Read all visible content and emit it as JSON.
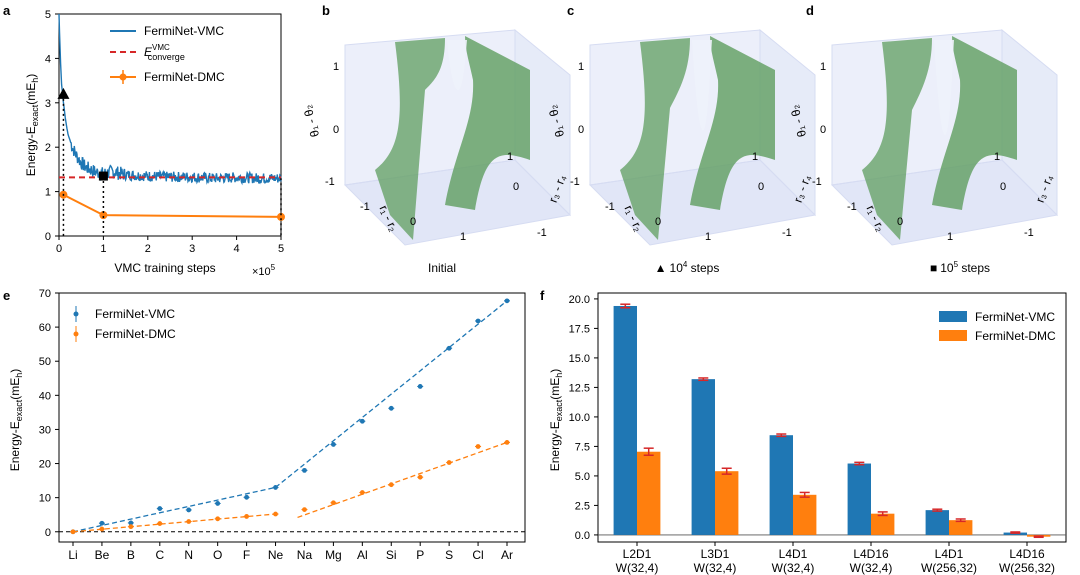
{
  "colors": {
    "vmc": "#1f77b4",
    "dmc": "#ff7f0e",
    "red": "#d62728",
    "surface": "#5f9e5f",
    "box": "#c8d2f0"
  },
  "panels": {
    "a": {
      "label": "a",
      "xlabel": "VMC training steps",
      "multiplier": "×10",
      "multiplier_exp": "5",
      "ylabel_pre": "Energy-E",
      "ylabel_sub": "exact",
      "ylabel_unit": "(mE",
      "ylabel_unit_sub": "h",
      "ylabel_close": ")",
      "legend": {
        "vmc": "FermiNet-VMC",
        "conv": "E",
        "conv_sup": "VMC",
        "conv_sub": "converge",
        "dmc": "FermiNet-DMC"
      }
    },
    "b": {
      "label": "b",
      "caption": "Initial"
    },
    "c": {
      "label": "c",
      "caption": "10",
      "caption_sup": "4",
      "caption_rest": " steps",
      "marker": "▲"
    },
    "d": {
      "label": "d",
      "caption": "10",
      "caption_sup": "5",
      "caption_rest": " steps",
      "marker": "■"
    },
    "e": {
      "label": "e",
      "legend_vmc": "FermiNet-VMC",
      "legend_dmc": "FermiNet-DMC"
    },
    "f": {
      "label": "f",
      "legend_vmc": "FermiNet-VMC",
      "legend_dmc": "FermiNet-DMC"
    },
    "surface_axes": {
      "theta": "θ₁ - θ₂",
      "r12": "r₁ - r₂",
      "r34": "r₃ - r₄",
      "t1": "1",
      "t0": "0",
      "tm1": "-1"
    }
  },
  "chart_data": [
    {
      "id": "a",
      "type": "line",
      "title": "",
      "xlabel": "VMC training steps",
      "ylabel": "Energy-E_exact(mE_h)",
      "xlim": [
        0,
        5
      ],
      "ylim": [
        0,
        5
      ],
      "xticks": [
        "0",
        "1",
        "2",
        "3",
        "4",
        "5"
      ],
      "yticks": [
        "0",
        "1",
        "2",
        "3",
        "4",
        "5"
      ],
      "series": [
        {
          "name": "FermiNet-VMC",
          "kind": "line",
          "x": [
            0,
            0.03,
            0.06,
            0.1,
            0.15,
            0.2,
            0.3,
            0.4,
            0.5,
            0.6,
            0.7,
            0.8,
            1.0,
            1.2,
            1.5,
            2.0,
            2.5,
            3.0,
            3.5,
            4.0,
            4.5,
            5.0
          ],
          "y": [
            5,
            4.0,
            3.4,
            3.0,
            2.6,
            2.3,
            2.0,
            1.8,
            1.65,
            1.55,
            1.5,
            1.45,
            1.4,
            1.45,
            1.38,
            1.35,
            1.33,
            1.33,
            1.3,
            1.32,
            1.3,
            1.3
          ],
          "noise": 0.12
        },
        {
          "name": "E_converge^VMC",
          "kind": "hline",
          "y": 1.32
        },
        {
          "name": "FermiNet-DMC",
          "kind": "errorline",
          "x": [
            0.1,
            1.0,
            5.0
          ],
          "y": [
            0.93,
            0.47,
            0.43
          ],
          "err": [
            0.08,
            0.06,
            0.05
          ]
        }
      ],
      "markers": [
        {
          "shape": "triangle",
          "x": 0.1,
          "y": 3.2
        },
        {
          "shape": "square",
          "x": 1.0,
          "y": 1.35
        }
      ]
    },
    {
      "id": "e",
      "type": "scatter",
      "title": "",
      "xlabel": "",
      "ylabel": "Energy-E_exact(mE_h)",
      "ylim": [
        -3,
        70
      ],
      "categories": [
        "Li",
        "Be",
        "B",
        "C",
        "N",
        "O",
        "F",
        "Ne",
        "Na",
        "Mg",
        "Al",
        "Si",
        "P",
        "S",
        "Cl",
        "Ar"
      ],
      "yticks": [
        "0",
        "10",
        "20",
        "30",
        "40",
        "50",
        "60",
        "70"
      ],
      "series": [
        {
          "name": "FermiNet-VMC",
          "values": [
            0.0,
            2.5,
            2.6,
            6.8,
            6.4,
            8.3,
            10.1,
            13.0,
            18.0,
            25.6,
            32.4,
            36.2,
            42.6,
            53.8,
            61.8,
            67.7
          ],
          "fit_first": [
            0.0,
            13.0
          ],
          "fit_second": [
            13.0,
            67.7
          ]
        },
        {
          "name": "FermiNet-DMC",
          "values": [
            0.0,
            0.8,
            1.5,
            2.4,
            3.0,
            3.8,
            4.5,
            5.2,
            6.5,
            8.5,
            11.5,
            13.8,
            16.0,
            20.3,
            25.0,
            26.2
          ],
          "fit_first": [
            0.0,
            5.2
          ],
          "fit_second": [
            4.2,
            26.2
          ]
        }
      ]
    },
    {
      "id": "f",
      "type": "bar",
      "title": "",
      "xlabel": "",
      "ylabel": "Energy-E_exact(mE_h)",
      "ylim": [
        -0.6,
        20.5
      ],
      "categories": [
        "L2D1|W(32,4)",
        "L3D1|W(32,4)",
        "L4D1|W(32,4)",
        "L4D16|W(32,4)",
        "L4D1|W(256,32)",
        "L4D16|W(256,32)"
      ],
      "yticks": [
        "0.0",
        "2.5",
        "5.0",
        "7.5",
        "10.0",
        "12.5",
        "15.0",
        "17.5",
        "20.0"
      ],
      "series": [
        {
          "name": "FermiNet-VMC",
          "values": [
            19.4,
            13.2,
            8.45,
            6.05,
            2.1,
            0.2
          ],
          "err": [
            0.15,
            0.1,
            0.1,
            0.1,
            0.08,
            0.05
          ]
        },
        {
          "name": "FermiNet-DMC",
          "values": [
            7.05,
            5.4,
            3.4,
            1.8,
            1.25,
            -0.15
          ],
          "err": [
            0.3,
            0.25,
            0.2,
            0.15,
            0.1,
            0.05
          ]
        }
      ]
    }
  ]
}
